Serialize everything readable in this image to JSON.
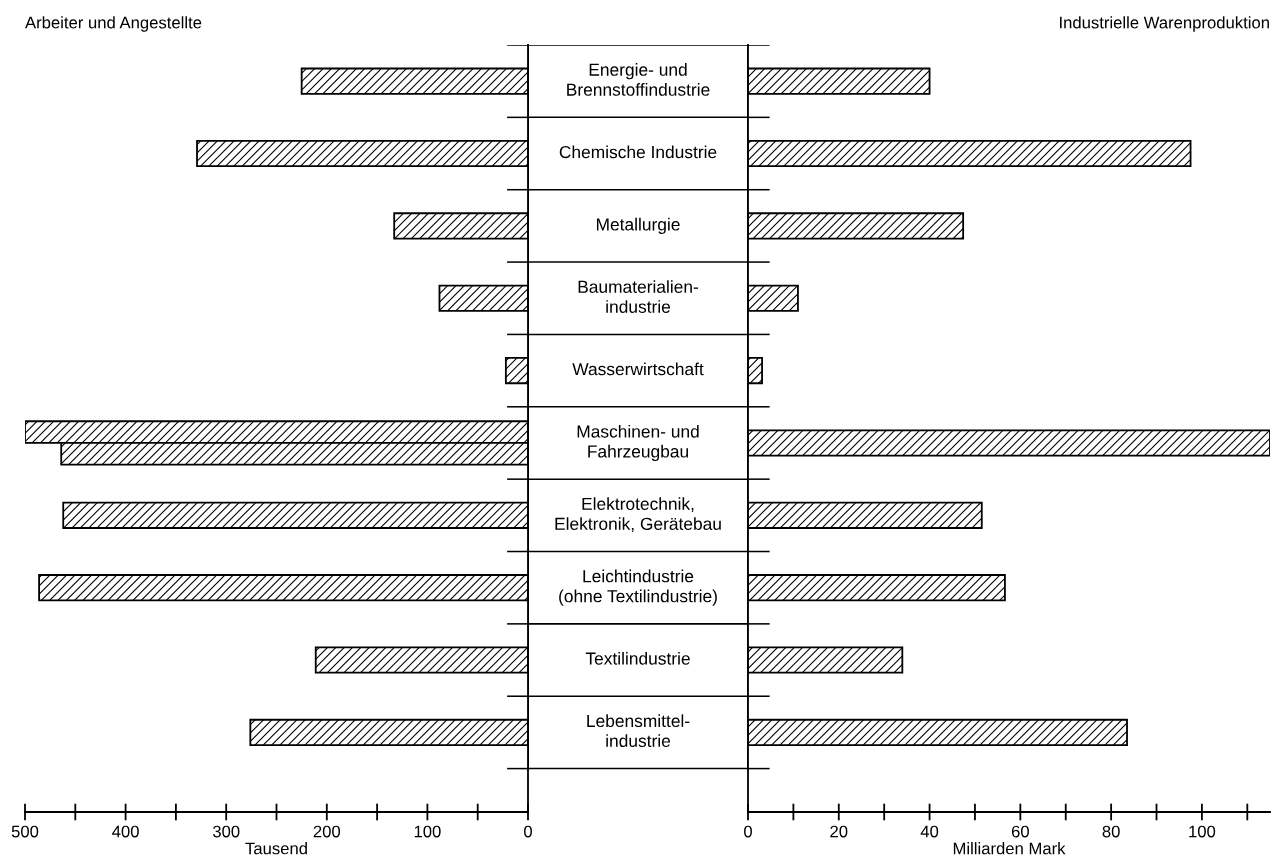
{
  "chart_data": [
    {
      "type": "bar",
      "orientation": "horizontal",
      "title": "Arbeiter und Angestellte",
      "xlabel": "Tausend",
      "categories": [
        "Energie- und\nBrennstoffindustrie",
        "Chemische Industrie",
        "Metallurgie",
        "Baumaterialien-\nindustrie",
        "Wasserwirtschaft",
        "Maschinen- und\nFahrzeugbau",
        "Elektrotechnik,\nElektronik, Gerätebau",
        "Leichtindustrie\n(ohne Textilindustrie)",
        "Textilindustrie",
        "Lebensmittel-\nindustrie"
      ],
      "series": [
        {
          "color": "#000000",
          "values": [
            225,
            329,
            133,
            88,
            22,
            500,
            462,
            486,
            211,
            276
          ]
        },
        {
          "color": "#000000",
          "values": [
            null,
            null,
            null,
            null,
            null,
            464,
            null,
            null,
            null,
            null
          ]
        }
      ],
      "xlim": [
        500,
        0
      ],
      "xticks": [
        500,
        400,
        300,
        200,
        100,
        0
      ],
      "grid": false,
      "legend": false
    },
    {
      "type": "bar",
      "orientation": "horizontal",
      "title": "Industrielle Warenproduktion",
      "xlabel": "Milliarden Mark",
      "categories": [
        null,
        null,
        null,
        null,
        null,
        null,
        null,
        null,
        null,
        null
      ],
      "series": [
        {
          "color": "#000000",
          "values": [
            40,
            97.5,
            47.4,
            11,
            3.1,
            115,
            51.5,
            56.6,
            34,
            83.5
          ]
        }
      ],
      "xlim": [
        0,
        115
      ],
      "xticks": [
        0,
        20,
        40,
        60,
        80,
        100
      ],
      "grid": false,
      "legend": false
    }
  ]
}
